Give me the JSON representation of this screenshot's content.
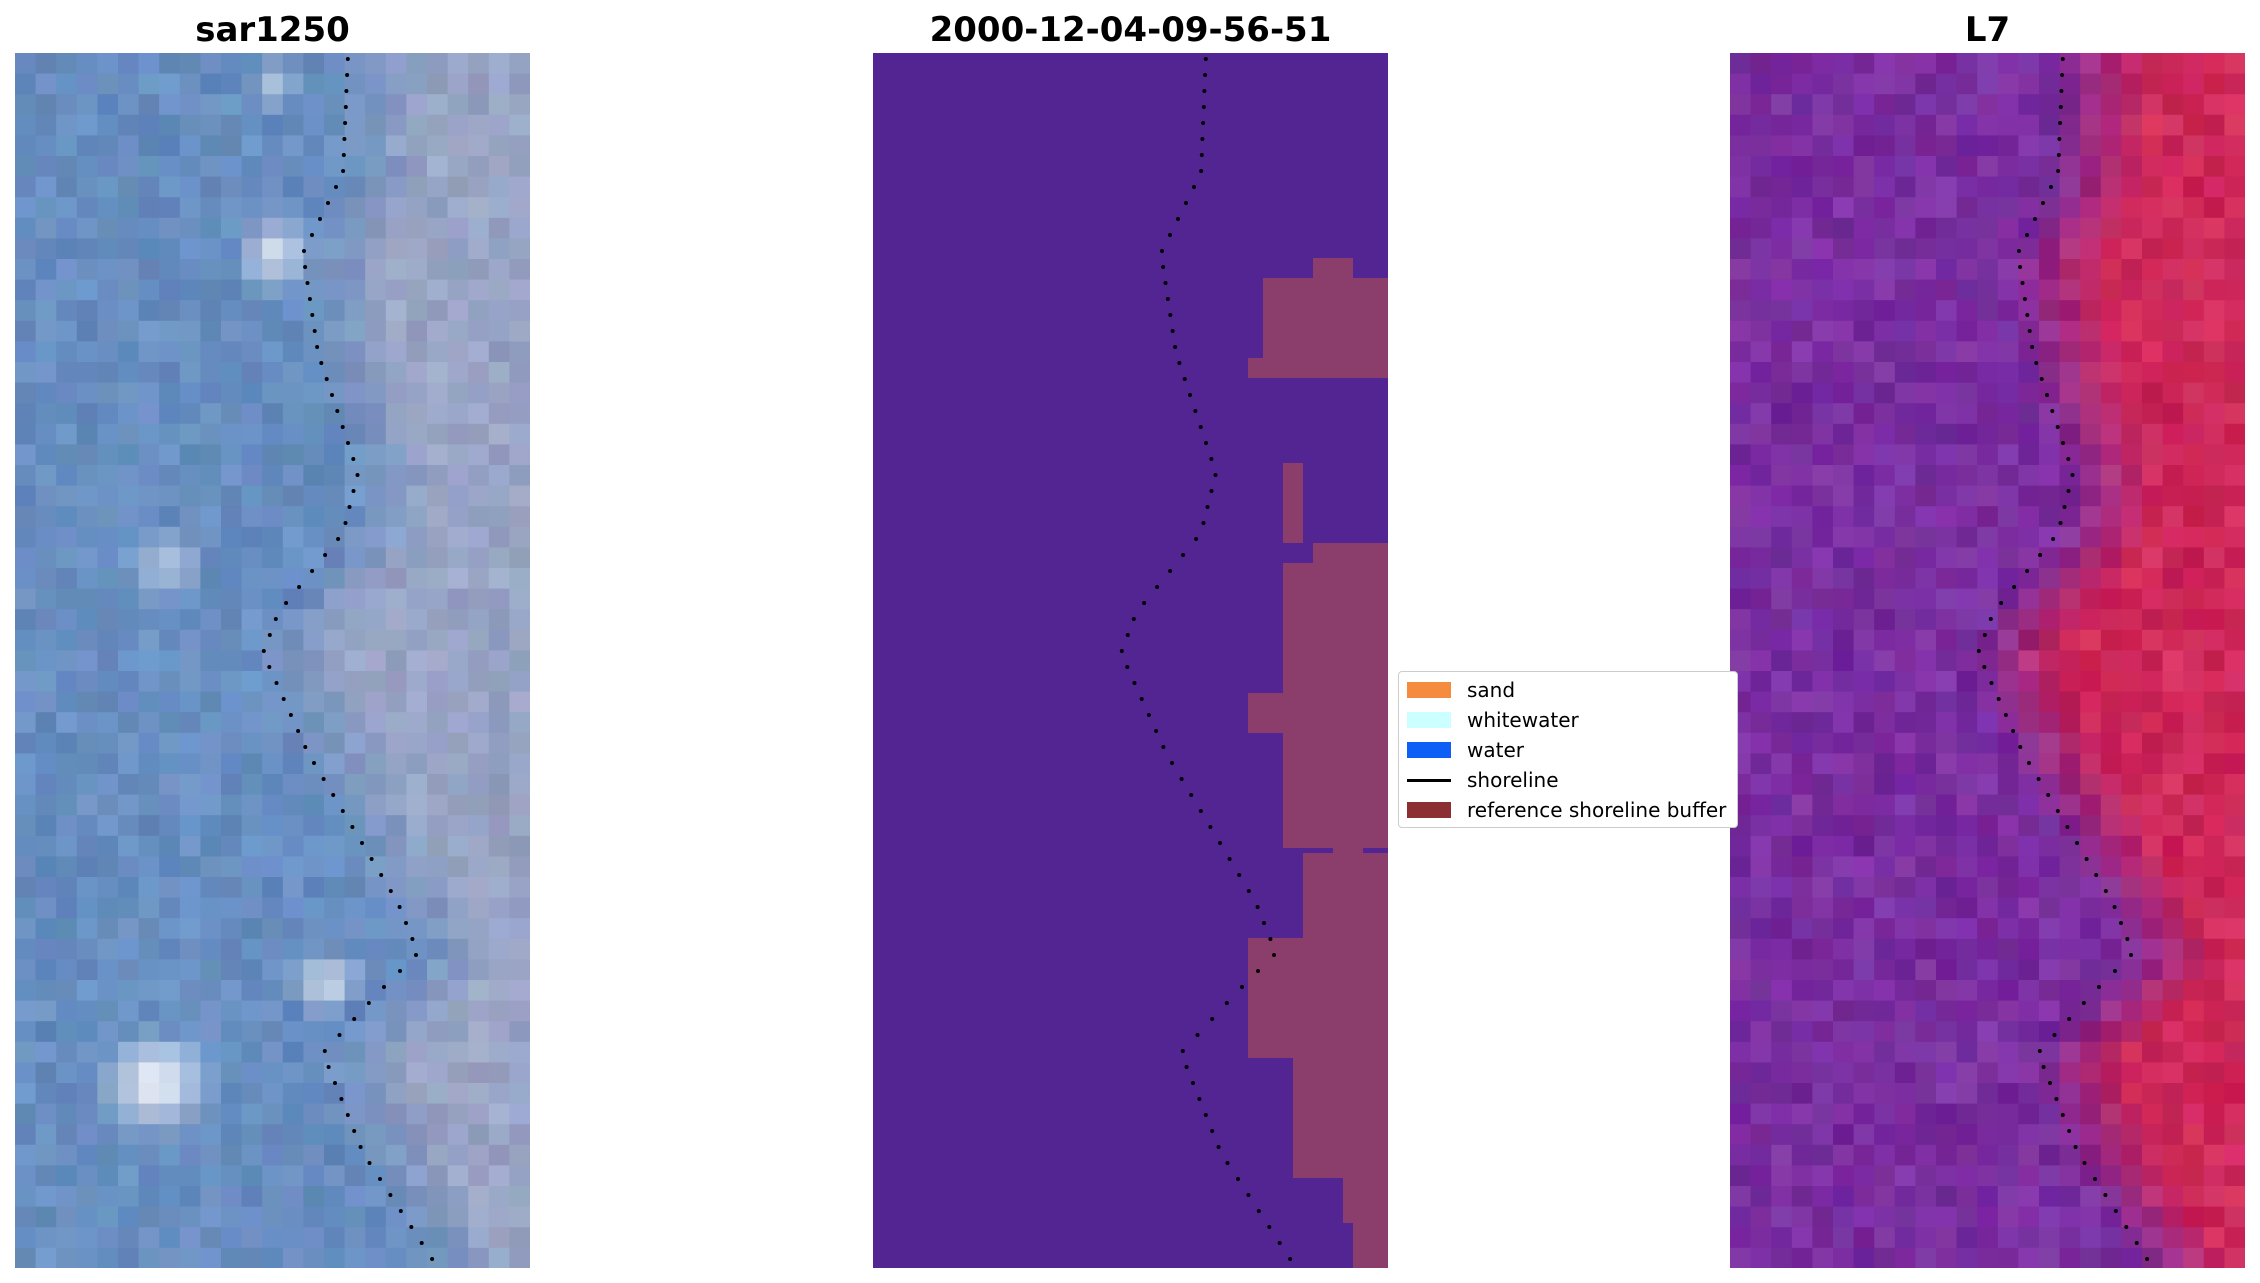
{
  "panels": [
    {
      "title": "sar1250",
      "kind": "sar"
    },
    {
      "title": "2000-12-04-09-56-51",
      "kind": "class"
    },
    {
      "title": "L7",
      "kind": "l7"
    }
  ],
  "legend": {
    "items": [
      {
        "label": "sand",
        "color": "#f58b3e",
        "kind": "patch"
      },
      {
        "label": "whitewater",
        "color": "#ccffff",
        "kind": "patch"
      },
      {
        "label": "water",
        "color": "#0d5ff5",
        "kind": "patch"
      },
      {
        "label": "shoreline",
        "color": "#000000",
        "kind": "line"
      },
      {
        "label": "reference shoreline buffer",
        "color": "#8b2f33",
        "kind": "patch"
      }
    ]
  },
  "colors": {
    "class_background": "#522593",
    "buffer_overlay": "#8b3d6b",
    "sar_base": "#6a8ec0",
    "l7_base": "#7e2d9e",
    "l7_land": "#d0245a"
  }
}
